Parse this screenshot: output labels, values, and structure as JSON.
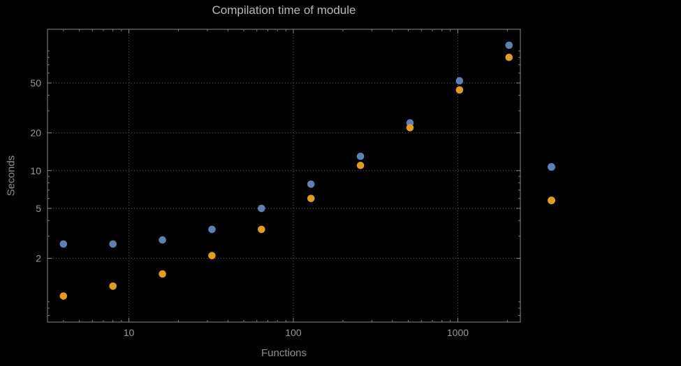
{
  "chart_data": {
    "type": "scatter",
    "title": "Compilation time of module",
    "xlabel": "Functions",
    "ylabel": "Seconds",
    "x_scale": "log",
    "y_scale": "log",
    "x": [
      4,
      8,
      16,
      32,
      64,
      128,
      256,
      512,
      1024,
      2048
    ],
    "series": [
      {
        "name": "series-1",
        "color": "#5e81b5",
        "values": [
          2.6,
          2.6,
          2.8,
          3.4,
          5.0,
          7.8,
          13,
          24,
          52,
          100
        ]
      },
      {
        "name": "series-2",
        "color": "#e19c24",
        "values": [
          1.0,
          1.2,
          1.5,
          2.1,
          3.4,
          6.0,
          11,
          22,
          44,
          80
        ]
      }
    ],
    "x_ticks": [
      10,
      100,
      1000
    ],
    "y_ticks": [
      2,
      5,
      10,
      20,
      50
    ],
    "xlim": [
      3.2,
      2400
    ],
    "ylim": [
      0.62,
      134
    ],
    "grid": "dotted",
    "legend": {
      "position": "right-outside",
      "labels_visible": false
    }
  },
  "colors": {
    "background": "#000000",
    "title": "#b9b9b9",
    "axis_label": "#8f8f8f",
    "tick_label": "#999999",
    "frame": "#8a8a8a",
    "grid": "#5e5e5e",
    "minor_tick": "#7d7d7d"
  }
}
